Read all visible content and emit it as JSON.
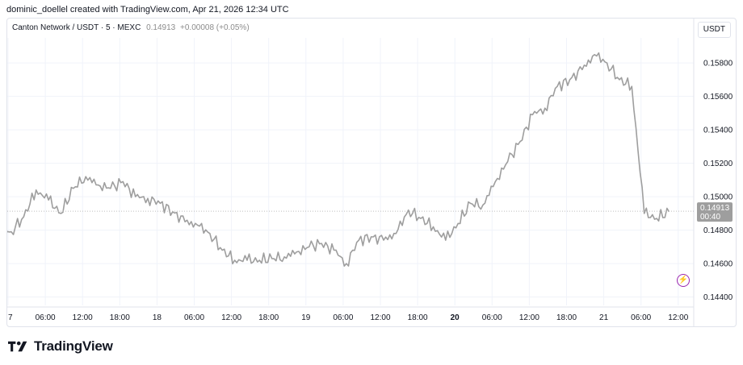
{
  "caption": "dominic_doellel created with TradingView.com, Apr 21, 2026 12:34 UTC",
  "legend": {
    "symbol": "Canton Network / USDT · 5 · MEXC",
    "price": "0.14913",
    "change": "+0.00008 (+0.05%)"
  },
  "currency_button": "USDT",
  "price_label": {
    "price": "0.14913",
    "countdown": "00:40"
  },
  "logo_text": "TradingView",
  "colors": {
    "line": "#9e9e9e",
    "price_tag": "#9e9e9e",
    "grid": "#f0f3fa",
    "accent": "#9c27b0"
  },
  "icons": {
    "lightning": "lightning-icon"
  },
  "chart_data": {
    "type": "line",
    "title": "Canton Network / USDT · 5 · MEXC",
    "ylim": [
      0.1435,
      0.1595
    ],
    "y_ticks": [
      "0.15800",
      "0.15600",
      "0.15400",
      "0.15200",
      "0.15000",
      "0.14800",
      "0.14600",
      "0.14400"
    ],
    "x_ticks": [
      "7",
      "06:00",
      "12:00",
      "18:00",
      "18",
      "06:00",
      "12:00",
      "18:00",
      "19",
      "06:00",
      "12:00",
      "18:00",
      "20",
      "06:00",
      "12:00",
      "18:00",
      "21",
      "06:00",
      "12:00"
    ],
    "bold_x_ticks": [
      "20"
    ],
    "x": [
      "Apr 16 18:00",
      "Apr 16 20:00",
      "Apr 16 22:00",
      "Apr 17 00:00",
      "Apr 17 02:00",
      "Apr 17 04:00",
      "Apr 17 06:00",
      "Apr 17 08:00",
      "Apr 17 10:00",
      "Apr 17 12:00",
      "Apr 17 14:00",
      "Apr 17 16:00",
      "Apr 17 18:00",
      "Apr 17 20:00",
      "Apr 17 22:00",
      "Apr 18 00:00",
      "Apr 18 02:00",
      "Apr 18 04:00",
      "Apr 18 06:00",
      "Apr 18 08:00",
      "Apr 18 10:00",
      "Apr 18 12:00",
      "Apr 18 14:00",
      "Apr 18 16:00",
      "Apr 18 18:00",
      "Apr 18 20:00",
      "Apr 18 22:00",
      "Apr 19 00:00",
      "Apr 19 02:00",
      "Apr 19 04:00",
      "Apr 19 06:00",
      "Apr 19 08:00",
      "Apr 19 10:00",
      "Apr 19 12:00",
      "Apr 19 14:00",
      "Apr 19 16:00",
      "Apr 19 18:00",
      "Apr 19 20:00",
      "Apr 19 22:00",
      "Apr 20 00:00",
      "Apr 20 02:00",
      "Apr 20 04:00",
      "Apr 20 06:00",
      "Apr 20 08:00",
      "Apr 20 10:00",
      "Apr 20 12:00",
      "Apr 20 14:00",
      "Apr 20 16:00",
      "Apr 20 18:00",
      "Apr 20 20:00",
      "Apr 20 22:00",
      "Apr 21 00:00",
      "Apr 21 02:00",
      "Apr 21 04:00",
      "Apr 21 06:00",
      "Apr 21 08:00",
      "Apr 21 10:00",
      "Apr 21 12:00"
    ],
    "series": [
      {
        "values": [
          0.1478,
          0.1477,
          0.1476,
          0.1478,
          0.1479,
          0.1488,
          0.1504,
          0.1498,
          0.149,
          0.1505,
          0.1512,
          0.1507,
          0.1505,
          0.1509,
          0.15,
          0.1499,
          0.1496,
          0.1491,
          0.1485,
          0.1483,
          0.1478,
          0.1468,
          0.1462,
          0.1462,
          0.1462,
          0.1463,
          0.1464,
          0.1467,
          0.147,
          0.1472,
          0.1468,
          0.146,
          0.1474,
          0.1476,
          0.1474,
          0.1478,
          0.1492,
          0.1487,
          0.1482,
          0.1474,
          0.1484,
          0.1496,
          0.1495,
          0.1509,
          0.1521,
          0.1533,
          0.1549,
          0.1553,
          0.1566,
          0.157,
          0.1576,
          0.1585,
          0.158,
          0.157,
          0.1566,
          0.149,
          0.1487,
          0.1491
        ]
      }
    ]
  }
}
